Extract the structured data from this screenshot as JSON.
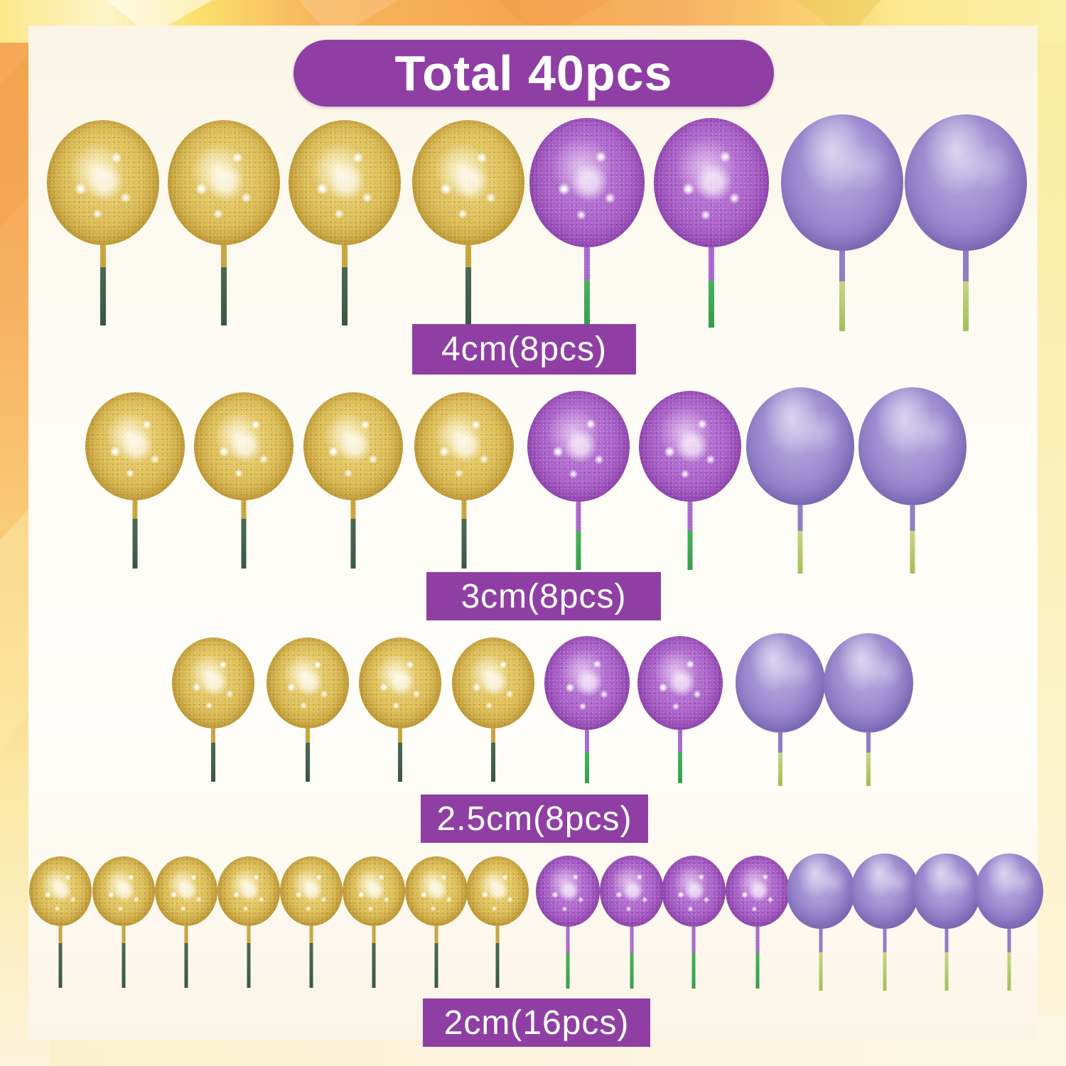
{
  "title": "Total 40pcs",
  "total_pieces": 40,
  "theme": {
    "banner_purple": "#8F3FA3",
    "label_text_color": "#FFFFFF",
    "panel_background": "#FDFAF0",
    "border_orange": "#F5A74E",
    "border_yellow": "#FBE88A",
    "border_pale_yellow": "#FAF0A8",
    "border_cream": "#FCF3DF",
    "gold_glitter": "#DDBE58",
    "purple_glitter": "#AB63C9",
    "purple_matte": "#9A8BCE",
    "stem_dark_green": "#3E5C47",
    "stem_bright_green": "#3FA954",
    "stem_yellow_green": "#B5CB6E",
    "stem_gold_cap": "#C6A23C",
    "stem_purple_cap": "#8F7EC6"
  },
  "rows": [
    {
      "label": "4cm(8pcs)",
      "size": "4cm",
      "pieces": 8,
      "balls": [
        "gold",
        "gold",
        "gold",
        "gold",
        "purple_glitter",
        "purple_glitter",
        "purple_matte",
        "purple_matte"
      ]
    },
    {
      "label": "3cm(8pcs)",
      "size": "3cm",
      "pieces": 8,
      "balls": [
        "gold",
        "gold",
        "gold",
        "gold",
        "purple_glitter",
        "purple_glitter",
        "purple_matte",
        "purple_matte"
      ]
    },
    {
      "label": "2.5cm(8pcs)",
      "size": "2.5cm",
      "pieces": 8,
      "balls": [
        "gold",
        "gold",
        "gold",
        "gold",
        "purple_glitter",
        "purple_glitter",
        "purple_matte",
        "purple_matte"
      ]
    },
    {
      "label": "2cm(16pcs)",
      "size": "2cm",
      "pieces": 16,
      "balls": [
        "gold",
        "gold",
        "gold",
        "gold",
        "gold",
        "gold",
        "gold",
        "gold",
        "purple_glitter",
        "purple_glitter",
        "purple_glitter",
        "purple_glitter",
        "purple_matte",
        "purple_matte",
        "purple_matte",
        "purple_matte"
      ]
    }
  ]
}
